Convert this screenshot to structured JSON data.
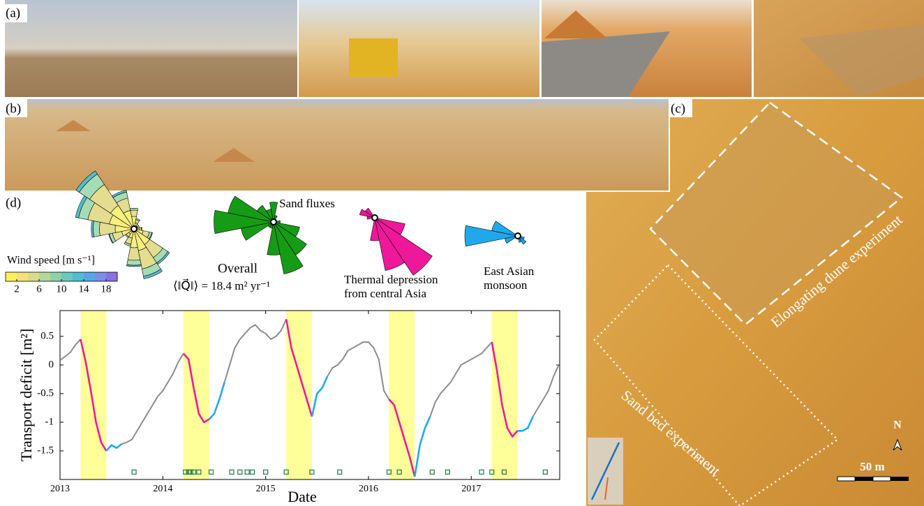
{
  "panel_labels": [
    "(a)",
    "(b)",
    "(c)",
    "(d)"
  ],
  "map": {
    "labels": [
      "Elongating dune experiment",
      "Sand bed experiment"
    ],
    "north": "N",
    "scale": "50 m"
  },
  "chart_data": [
    {
      "type": "rose",
      "directions": [
        0,
        22.5,
        45,
        67.5,
        90,
        112.5,
        135,
        157.5,
        180,
        202.5,
        225,
        247.5,
        270,
        292.5,
        315,
        337.5
      ],
      "series": [
        {
          "color": "#f8ef7e",
          "values": [
            2,
            1,
            0.6,
            0.6,
            0.8,
            1.5,
            3,
            3.5,
            3,
            1.5,
            1,
            2,
            3,
            4,
            4.5,
            3
          ]
        },
        {
          "color": "#e4dc8f",
          "values": [
            1,
            0.5,
            0.3,
            0.3,
            0.4,
            1,
            2.5,
            3,
            2,
            1,
            0.5,
            1.5,
            2.5,
            3.5,
            4,
            2
          ]
        },
        {
          "color": "#a6dcb5",
          "values": [
            0.3,
            0.2,
            0,
            0,
            0.1,
            0.4,
            1,
            1.2,
            0.8,
            0.3,
            0.2,
            0.5,
            1,
            1.5,
            2,
            1
          ]
        },
        {
          "color": "#54c0cf",
          "values": [
            0,
            0,
            0,
            0,
            0,
            0.1,
            0.3,
            0.4,
            0.2,
            0,
            0,
            0.1,
            0.3,
            0.5,
            0.6,
            0.3
          ]
        }
      ],
      "colorbar": {
        "label": "Wind speed [m s⁻¹]",
        "lim": [
          0,
          20
        ],
        "ticks": [
          2,
          6,
          10,
          14,
          18
        ],
        "colors": [
          "#fcf05a",
          "#f2e27a",
          "#d9dc8c",
          "#b5d79b",
          "#8ed0aa",
          "#6cc8bc",
          "#4ebdd4",
          "#5aa6e4",
          "#7b8eea",
          "#8d6fe0"
        ]
      }
    },
    {
      "type": "rose",
      "title": "Sand fluxes",
      "color": "#169b16",
      "directions": [
        0,
        22.5,
        45,
        67.5,
        90,
        112.5,
        135,
        157.5,
        180,
        202.5,
        225,
        247.5,
        270,
        292.5,
        315,
        337.5
      ],
      "values": [
        3,
        1,
        0.5,
        0.5,
        1,
        4,
        6,
        8,
        5,
        1,
        1,
        5,
        9,
        7,
        3,
        2
      ],
      "label": [
        "Overall",
        "⟨‖Q⃗‖⟩ = 18.4 m² yr⁻¹"
      ]
    },
    {
      "type": "rose",
      "color": "#f0189a",
      "directions": [
        0,
        22.5,
        45,
        67.5,
        90,
        112.5,
        135,
        157.5,
        180,
        202.5,
        225,
        247.5,
        270,
        292.5,
        315,
        337.5
      ],
      "values": [
        0.3,
        0.3,
        0.3,
        0.3,
        0.3,
        4,
        9,
        7,
        3,
        0.3,
        0.3,
        0.3,
        1,
        2,
        1.5,
        0.3
      ],
      "label": [
        "Thermal depression",
        "from central Asia"
      ]
    },
    {
      "type": "rose",
      "color": "#1fa9ec",
      "directions": [
        0,
        22.5,
        45,
        67.5,
        90,
        112.5,
        135,
        157.5,
        180,
        202.5,
        225,
        247.5,
        270,
        292.5,
        315,
        337.5
      ],
      "values": [
        0.3,
        0.3,
        0.3,
        0.3,
        0.3,
        1,
        1.5,
        1,
        0.3,
        0.3,
        0.3,
        2,
        8,
        4,
        0.3,
        0.3
      ],
      "label": [
        "East Asian",
        "monsoon"
      ]
    },
    {
      "type": "line",
      "y_label": "Transport deficit [m²]",
      "x_label": "Date",
      "xlim": [
        2013,
        2017.86
      ],
      "xticks": [
        2013,
        2014,
        2015,
        2016,
        2017
      ],
      "ylim": [
        -2,
        0.95
      ],
      "yticks": [
        0.5,
        0,
        -0.5,
        -1,
        -1.5
      ],
      "highlight_spans": [
        [
          2013.2,
          2013.45
        ],
        [
          2014.2,
          2014.45
        ],
        [
          2015.2,
          2015.45
        ],
        [
          2016.2,
          2016.45
        ],
        [
          2017.2,
          2017.45
        ]
      ],
      "highlight_color": "#ffff99",
      "x": [
        2013,
        2013.05,
        2013.1,
        2013.15,
        2013.2,
        2013.25,
        2013.3,
        2013.35,
        2013.4,
        2013.45,
        2013.5,
        2013.55,
        2013.6,
        2013.65,
        2013.7,
        2013.75,
        2013.8,
        2013.85,
        2013.9,
        2013.95,
        2014,
        2014.05,
        2014.1,
        2014.15,
        2014.2,
        2014.25,
        2014.3,
        2014.35,
        2014.4,
        2014.45,
        2014.5,
        2014.55,
        2014.6,
        2014.65,
        2014.7,
        2014.75,
        2014.8,
        2014.85,
        2014.9,
        2014.95,
        2015,
        2015.05,
        2015.1,
        2015.15,
        2015.2,
        2015.25,
        2015.3,
        2015.35,
        2015.4,
        2015.45,
        2015.5,
        2015.55,
        2015.6,
        2015.65,
        2015.7,
        2015.75,
        2015.8,
        2015.85,
        2015.9,
        2015.95,
        2016,
        2016.05,
        2016.1,
        2016.15,
        2016.2,
        2016.25,
        2016.3,
        2016.35,
        2016.4,
        2016.45,
        2016.5,
        2016.55,
        2016.6,
        2016.65,
        2016.7,
        2016.75,
        2016.8,
        2016.85,
        2016.9,
        2016.95,
        2017,
        2017.05,
        2017.1,
        2017.15,
        2017.2,
        2017.25,
        2017.3,
        2017.35,
        2017.4,
        2017.45,
        2017.5,
        2017.55,
        2017.6,
        2017.65,
        2017.7,
        2017.75,
        2017.8,
        2017.85
      ],
      "series": [
        {
          "color": "#8c8c8c",
          "values": [
            0.08,
            0.15,
            0.22,
            0.35,
            0.45,
            null,
            null,
            null,
            null,
            null,
            null,
            null,
            -1.38,
            -1.35,
            -1.3,
            -1.15,
            -1.0,
            -0.85,
            -0.7,
            -0.55,
            -0.45,
            -0.3,
            -0.15,
            0.05,
            0.2,
            null,
            null,
            null,
            null,
            null,
            null,
            null,
            -0.3,
            0.0,
            0.3,
            0.45,
            0.55,
            0.65,
            0.7,
            0.6,
            0.55,
            0.45,
            0.5,
            0.6,
            0.8,
            null,
            null,
            null,
            null,
            null,
            null,
            null,
            -0.2,
            -0.05,
            0.0,
            0.1,
            0.25,
            0.3,
            0.35,
            0.4,
            0.4,
            0.3,
            0.1,
            -0.45,
            -0.6,
            null,
            null,
            null,
            null,
            null,
            null,
            null,
            -0.9,
            -0.65,
            -0.5,
            -0.4,
            -0.3,
            -0.15,
            0.0,
            0.05,
            0.1,
            0.15,
            0.2,
            0.3,
            0.4,
            null,
            null,
            null,
            null,
            null,
            null,
            null,
            -0.9,
            -0.75,
            -0.6,
            -0.45,
            -0.2,
            0.0
          ]
        },
        {
          "color": "#f0189a",
          "values": [
            null,
            null,
            null,
            null,
            0.45,
            0.05,
            -0.45,
            -1.0,
            -1.35,
            -1.5,
            null,
            null,
            null,
            null,
            null,
            null,
            null,
            null,
            null,
            null,
            null,
            null,
            null,
            null,
            0.2,
            0.1,
            -0.4,
            -0.85,
            -1.0,
            -0.95,
            null,
            null,
            null,
            null,
            null,
            null,
            null,
            null,
            null,
            null,
            null,
            null,
            null,
            null,
            0.8,
            0.3,
            0.0,
            -0.3,
            -0.6,
            -0.9,
            null,
            null,
            null,
            null,
            null,
            null,
            null,
            null,
            null,
            null,
            null,
            null,
            null,
            null,
            -0.6,
            -0.7,
            -1.0,
            -1.3,
            -1.6,
            -1.95,
            null,
            null,
            null,
            null,
            null,
            null,
            null,
            null,
            null,
            null,
            null,
            null,
            null,
            null,
            0.4,
            -0.1,
            -0.7,
            -1.1,
            -1.25,
            -1.15,
            null,
            null,
            null,
            null,
            null,
            null,
            null,
            null
          ]
        },
        {
          "color": "#1fa9ec",
          "values": [
            null,
            null,
            null,
            null,
            null,
            null,
            null,
            null,
            null,
            -1.5,
            -1.4,
            -1.45,
            -1.38,
            null,
            null,
            null,
            null,
            null,
            null,
            null,
            null,
            null,
            null,
            null,
            null,
            null,
            null,
            null,
            null,
            -0.95,
            -0.85,
            -0.6,
            -0.3,
            null,
            null,
            null,
            null,
            null,
            null,
            null,
            null,
            null,
            null,
            null,
            null,
            null,
            null,
            null,
            null,
            -0.9,
            -0.5,
            -0.4,
            -0.2,
            null,
            null,
            null,
            null,
            null,
            null,
            null,
            null,
            null,
            null,
            null,
            null,
            null,
            null,
            null,
            null,
            -1.95,
            -1.4,
            -1.1,
            -0.9,
            null,
            null,
            null,
            null,
            null,
            null,
            null,
            null,
            null,
            null,
            null,
            null,
            null,
            null,
            null,
            null,
            -1.15,
            -1.15,
            -1.1,
            -0.9,
            null,
            null,
            null,
            null,
            null
          ]
        }
      ],
      "markers": {
        "color": "#1e7a4a",
        "y": -1.87,
        "x": [
          2013.72,
          2014.22,
          2014.25,
          2014.27,
          2014.3,
          2014.35,
          2014.47,
          2014.67,
          2014.75,
          2014.82,
          2014.87,
          2015.0,
          2015.2,
          2015.45,
          2015.72,
          2016.2,
          2016.3,
          2016.62,
          2016.77,
          2017.1,
          2017.2,
          2017.32,
          2017.72
        ]
      }
    }
  ]
}
